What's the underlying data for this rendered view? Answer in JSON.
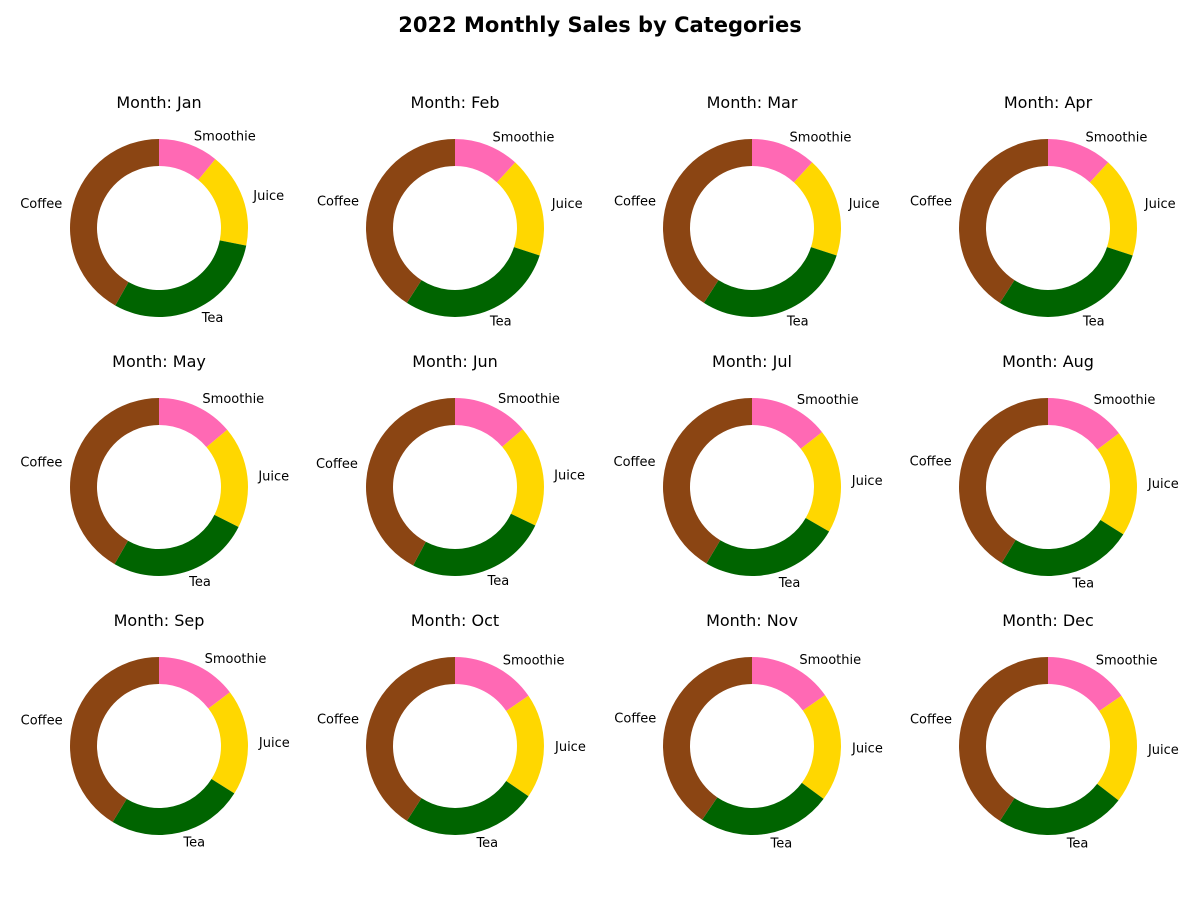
{
  "title": "2022 Monthly Sales by Categories",
  "chart_data": {
    "type": "pie",
    "variant": "donut",
    "title": "2022 Monthly Sales by Categories",
    "categories": [
      "Smoothie",
      "Juice",
      "Tea",
      "Coffee"
    ],
    "colors": {
      "Smoothie": "#ff69b4",
      "Juice": "#ffd700",
      "Tea": "#006400",
      "Coffee": "#8b4513"
    },
    "panels": [
      {
        "title": "Month: Jan",
        "values": [
          12,
          19,
          33,
          46
        ]
      },
      {
        "title": "Month: Feb",
        "values": [
          13,
          20,
          32,
          45
        ]
      },
      {
        "title": "Month: Mar",
        "values": [
          13,
          20,
          32,
          45
        ]
      },
      {
        "title": "Month: Apr",
        "values": [
          13,
          20,
          32,
          45
        ]
      },
      {
        "title": "Month: May",
        "values": [
          15,
          20,
          28,
          45
        ]
      },
      {
        "title": "Month: Jun",
        "values": [
          15,
          20,
          28,
          46
        ]
      },
      {
        "title": "Month: Jul",
        "values": [
          16,
          21,
          28,
          46
        ]
      },
      {
        "title": "Month: Aug",
        "values": [
          16,
          21,
          27,
          45
        ]
      },
      {
        "title": "Month: Sep",
        "values": [
          16,
          21,
          27,
          45
        ]
      },
      {
        "title": "Month: Oct",
        "values": [
          17,
          21,
          27,
          45
        ]
      },
      {
        "title": "Month: Nov",
        "values": [
          17,
          22,
          27,
          45
        ]
      },
      {
        "title": "Month: Dec",
        "values": [
          17,
          22,
          26,
          45
        ]
      }
    ]
  }
}
